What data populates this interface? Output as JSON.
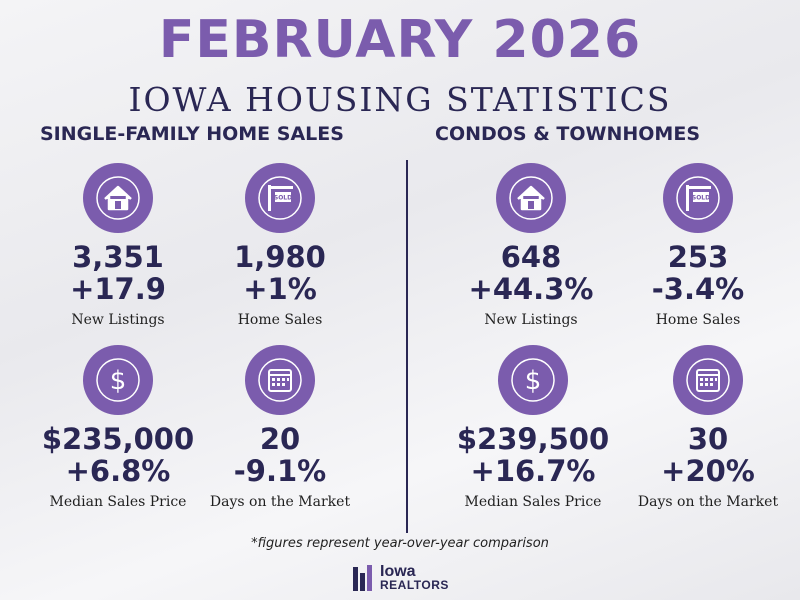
{
  "header": {
    "title": "FEBRUARY 2026",
    "subtitle": "IOWA HOUSING STATISTICS"
  },
  "colors": {
    "purple": "#7b5cad",
    "navy": "#2a2754",
    "icon_ring": "#ffffff"
  },
  "single_family": {
    "heading": "SINGLE-FAMILY HOME SALES",
    "new_listings": {
      "value": "3,351",
      "change": "+17.9",
      "label": "New Listings",
      "icon": "house-icon"
    },
    "home_sales": {
      "value": "1,980",
      "change": "+1%",
      "label": "Home Sales",
      "icon": "sold-sign-icon"
    },
    "median_price": {
      "value": "$235,000",
      "change": "+6.8%",
      "label": "Median Sales Price",
      "icon": "dollar-icon"
    },
    "days_on_market": {
      "value": "20",
      "change": "-9.1%",
      "label": "Days on the Market",
      "icon": "calendar-icon"
    }
  },
  "condos": {
    "heading": "CONDOS & TOWNHOMES",
    "new_listings": {
      "value": "648",
      "change": "+44.3%",
      "label": "New Listings",
      "icon": "house-icon"
    },
    "home_sales": {
      "value": "253",
      "change": "-3.4%",
      "label": "Home Sales",
      "icon": "sold-sign-icon"
    },
    "median_price": {
      "value": "$239,500",
      "change": "+16.7%",
      "label": "Median Sales Price",
      "icon": "dollar-icon"
    },
    "days_on_market": {
      "value": "30",
      "change": "+20%",
      "label": "Days on the Market",
      "icon": "calendar-icon"
    }
  },
  "footnote": "*figures represent year-over-year comparison",
  "logo": {
    "line1": "Iowa",
    "line2": "REALTORS"
  }
}
